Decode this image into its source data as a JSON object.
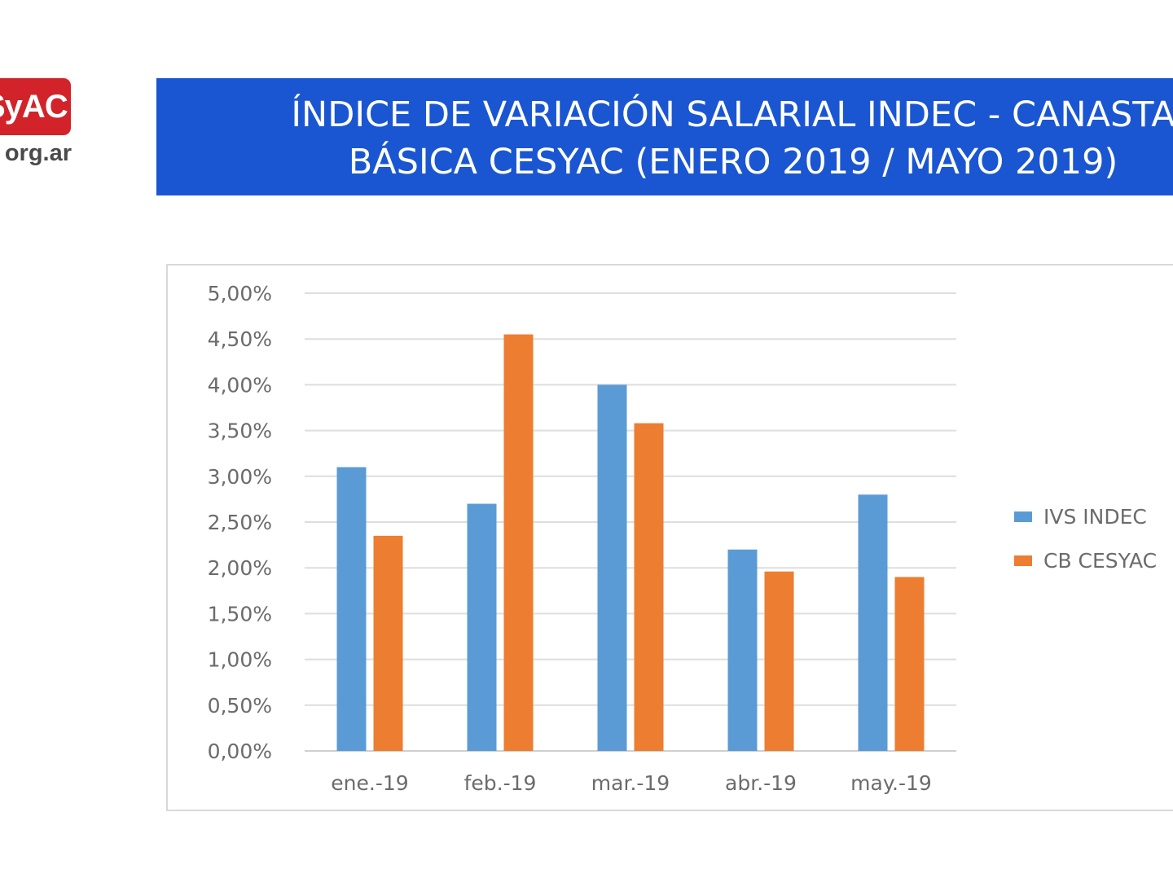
{
  "logo": {
    "badge_text": "SyAC",
    "domain_text": "org.ar",
    "color": "#d2232a"
  },
  "title": {
    "line1": "ÍNDICE DE VARIACIÓN SALARIAL INDEC - CANASTA",
    "line2": "BÁSICA CESYAC (ENERO 2019 / MAYO  2019)",
    "background": "#1a56d1"
  },
  "chart_data": {
    "type": "bar",
    "categories": [
      "ene.-19",
      "feb.-19",
      "mar.-19",
      "abr.-19",
      "may.-19"
    ],
    "series": [
      {
        "name": "IVS INDEC",
        "color": "#5b9bd5",
        "values": [
          3.1,
          2.7,
          4.0,
          2.2,
          2.8
        ]
      },
      {
        "name": "CB CESYAC",
        "color": "#ed7d31",
        "values": [
          2.35,
          4.55,
          3.58,
          1.96,
          1.9
        ]
      }
    ],
    "y_ticks": [
      "0,00%",
      "0,50%",
      "1,00%",
      "1,50%",
      "2,00%",
      "2,50%",
      "3,00%",
      "3,50%",
      "4,00%",
      "4,50%",
      "5,00%"
    ],
    "ylim": [
      0,
      5
    ],
    "y_unit": "%",
    "grid": true,
    "legend_position": "right"
  }
}
